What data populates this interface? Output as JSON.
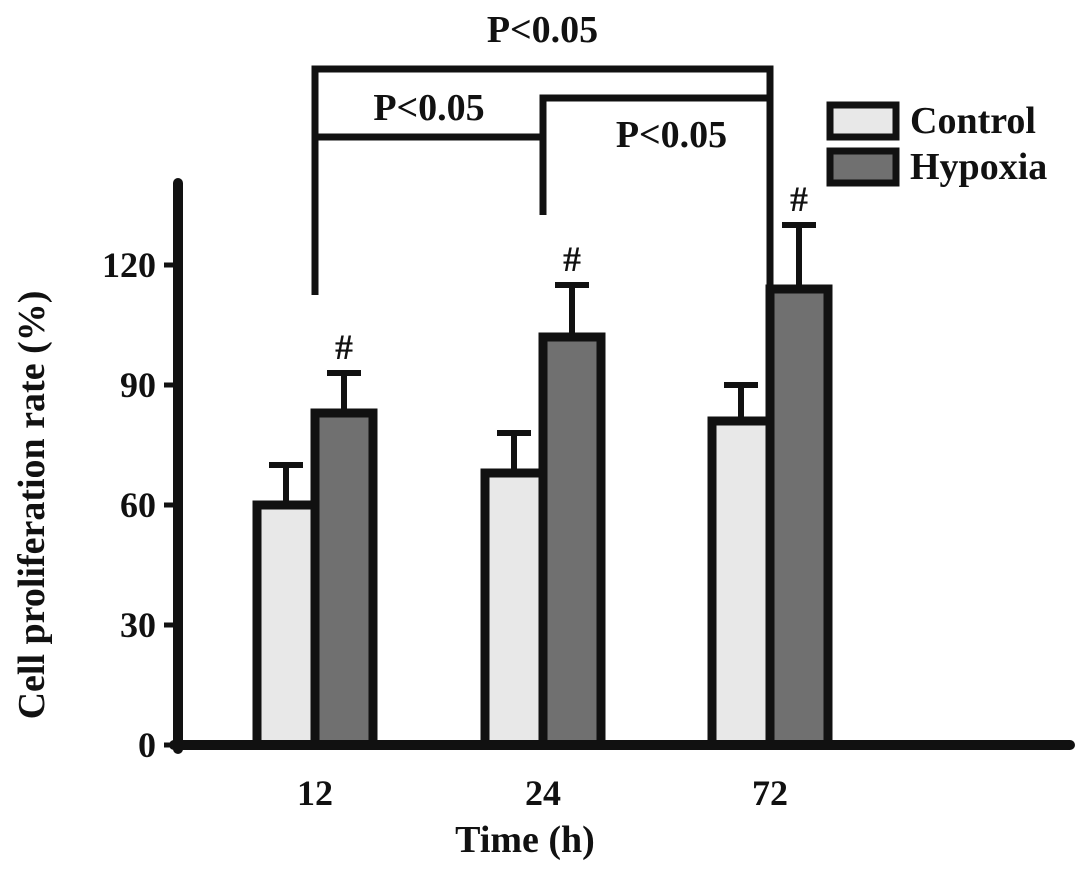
{
  "chart_data": {
    "type": "bar",
    "title": "",
    "xlabel": "Time (h)",
    "ylabel": "Cell proliferation rate (%)",
    "categories": [
      "12",
      "24",
      "72"
    ],
    "ylim": [
      0,
      135
    ],
    "yticks": [
      0,
      30,
      60,
      90,
      120
    ],
    "grid": false,
    "legend_position": "top-right",
    "series": [
      {
        "name": "Control",
        "color": "#e8e8e8",
        "values": [
          60,
          68,
          81
        ],
        "errors": [
          10,
          10,
          9
        ]
      },
      {
        "name": "Hypoxia",
        "color": "#707070",
        "values": [
          83,
          102,
          114
        ],
        "errors": [
          10,
          13,
          16
        ]
      }
    ],
    "point_annotations": [
      {
        "series": "Hypoxia",
        "category": "12",
        "text": "#"
      },
      {
        "series": "Hypoxia",
        "category": "24",
        "text": "#"
      },
      {
        "series": "Hypoxia",
        "category": "72",
        "text": "#"
      }
    ],
    "significance_brackets": [
      {
        "from": "12",
        "to": "72",
        "text": "P<0.05"
      },
      {
        "from": "12",
        "to": "24",
        "text": "P<0.05"
      },
      {
        "from": "24",
        "to": "72",
        "text": "P<0.05"
      }
    ]
  }
}
